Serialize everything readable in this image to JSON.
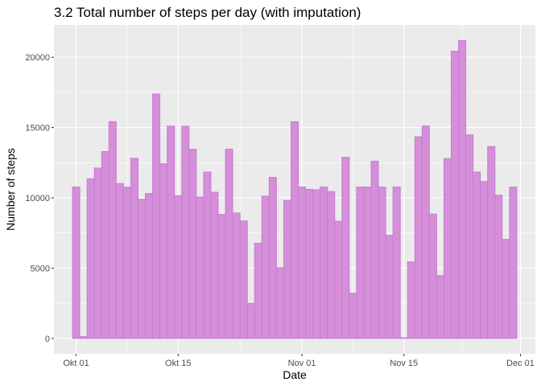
{
  "chart_data": {
    "type": "bar",
    "title": "3.2 Total number of steps per day (with imputation)",
    "xlabel": "Date",
    "ylabel": "Number of steps",
    "x_start": "2012-10-01",
    "ylim": [
      -1100,
      22300
    ],
    "yticks": [
      0,
      5000,
      10000,
      15000,
      20000
    ],
    "xticks": [
      {
        "date": "2012-10-01",
        "label": "Okt 01"
      },
      {
        "date": "2012-10-15",
        "label": "Okt 15"
      },
      {
        "date": "2012-11-01",
        "label": "Nov 01"
      },
      {
        "date": "2012-11-15",
        "label": "Nov 15"
      },
      {
        "date": "2012-12-01",
        "label": "Dec 01"
      }
    ],
    "values": [
      10766,
      126,
      11352,
      12116,
      13294,
      15420,
      11015,
      10766,
      12811,
      9900,
      10304,
      17382,
      12426,
      15098,
      10139,
      15084,
      13452,
      10056,
      11829,
      10395,
      8821,
      13460,
      8918,
      8355,
      2492,
      6778,
      10119,
      11458,
      5018,
      9819,
      15414,
      10766,
      10600,
      10571,
      10766,
      10439,
      8334,
      12883,
      3219,
      10766,
      10766,
      12608,
      10765,
      7336,
      10766,
      41,
      5441,
      14339,
      15110,
      8841,
      4472,
      12787,
      20427,
      21194,
      14478,
      11834,
      11162,
      13646,
      10183,
      7047,
      10766
    ],
    "bar_fill": "#d48fd8",
    "bar_stroke": "#c77cd4",
    "panel_color": "#ebebeb",
    "grid": true
  }
}
